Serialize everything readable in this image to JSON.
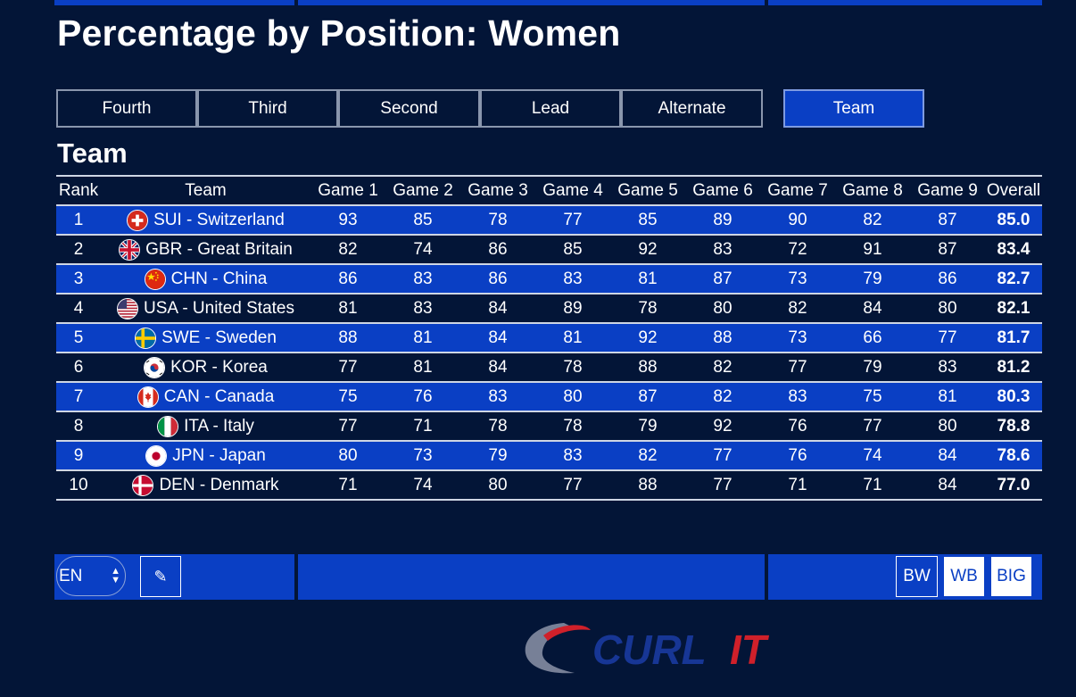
{
  "page": {
    "title": "Percentage by Position: Women",
    "section_title": "Team"
  },
  "tabs": [
    {
      "label": "Fourth",
      "active": false
    },
    {
      "label": "Third",
      "active": false
    },
    {
      "label": "Second",
      "active": false
    },
    {
      "label": "Lead",
      "active": false
    },
    {
      "label": "Alternate",
      "active": false
    },
    {
      "label": "Team",
      "active": true
    }
  ],
  "table": {
    "headers": [
      "Rank",
      "Team",
      "Game 1",
      "Game 2",
      "Game 3",
      "Game 4",
      "Game 5",
      "Game 6",
      "Game 7",
      "Game 8",
      "Game 9",
      "Overall"
    ],
    "rows": [
      {
        "rank": "1",
        "team": "SUI - Switzerland",
        "flag": "flag-sui-icon",
        "games": [
          "93",
          "85",
          "78",
          "77",
          "85",
          "89",
          "90",
          "82",
          "87"
        ],
        "overall": "85.0"
      },
      {
        "rank": "2",
        "team": "GBR - Great Britain",
        "flag": "flag-gbr-icon",
        "games": [
          "82",
          "74",
          "86",
          "85",
          "92",
          "83",
          "72",
          "91",
          "87"
        ],
        "overall": "83.4"
      },
      {
        "rank": "3",
        "team": "CHN - China",
        "flag": "flag-chn-icon",
        "games": [
          "86",
          "83",
          "86",
          "83",
          "81",
          "87",
          "73",
          "79",
          "86"
        ],
        "overall": "82.7"
      },
      {
        "rank": "4",
        "team": "USA - United States",
        "flag": "flag-usa-icon",
        "games": [
          "81",
          "83",
          "84",
          "89",
          "78",
          "80",
          "82",
          "84",
          "80"
        ],
        "overall": "82.1"
      },
      {
        "rank": "5",
        "team": "SWE - Sweden",
        "flag": "flag-swe-icon",
        "games": [
          "88",
          "81",
          "84",
          "81",
          "92",
          "88",
          "73",
          "66",
          "77"
        ],
        "overall": "81.7"
      },
      {
        "rank": "6",
        "team": "KOR - Korea",
        "flag": "flag-kor-icon",
        "games": [
          "77",
          "81",
          "84",
          "78",
          "88",
          "82",
          "77",
          "79",
          "83"
        ],
        "overall": "81.2"
      },
      {
        "rank": "7",
        "team": "CAN - Canada",
        "flag": "flag-can-icon",
        "games": [
          "75",
          "76",
          "83",
          "80",
          "87",
          "82",
          "83",
          "75",
          "81"
        ],
        "overall": "80.3"
      },
      {
        "rank": "8",
        "team": "ITA - Italy",
        "flag": "flag-ita-icon",
        "games": [
          "77",
          "71",
          "78",
          "78",
          "79",
          "92",
          "76",
          "77",
          "80"
        ],
        "overall": "78.8"
      },
      {
        "rank": "9",
        "team": "JPN - Japan",
        "flag": "flag-jpn-icon",
        "games": [
          "80",
          "73",
          "79",
          "83",
          "82",
          "77",
          "76",
          "74",
          "84"
        ],
        "overall": "78.6"
      },
      {
        "rank": "10",
        "team": "DEN - Denmark",
        "flag": "flag-den-icon",
        "games": [
          "71",
          "74",
          "80",
          "77",
          "88",
          "77",
          "71",
          "71",
          "84"
        ],
        "overall": "77.0"
      }
    ]
  },
  "footer": {
    "language": "EN",
    "edit_icon": "pencil-icon",
    "view_buttons": {
      "bw": "BW",
      "wb": "WB",
      "big": "BIG"
    }
  },
  "logo": {
    "text_a": "CURL",
    "text_b": "IT"
  },
  "colors": {
    "background": "#031537",
    "accent": "#0a3fc4",
    "logo_red": "#d0202a",
    "logo_blue": "#1a3aa0"
  }
}
